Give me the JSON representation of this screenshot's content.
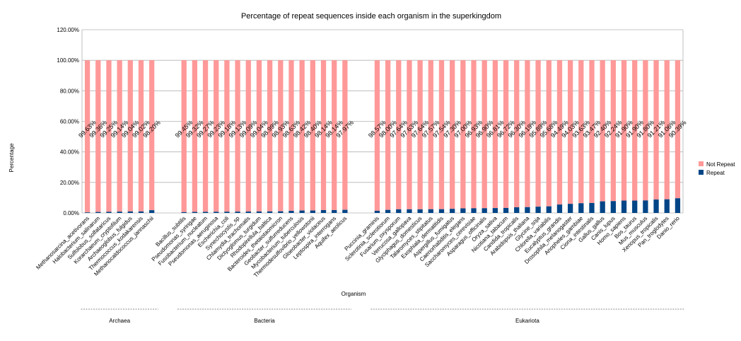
{
  "chart_data": {
    "type": "bar",
    "stacked": true,
    "title": "Percentage of repeat sequences inside each organism in the superkingdom",
    "xlabel": "Organism",
    "ylabel": "Percentage",
    "ylim": [
      0,
      1.2
    ],
    "yticks": [
      "0.00%",
      "20.00%",
      "40.00%",
      "60.00%",
      "80.00%",
      "100.00%",
      "120.00%"
    ],
    "grid": true,
    "legend_position": "right",
    "series": [
      {
        "name": "Not Repeat",
        "color": "#ff9999"
      },
      {
        "name": "Repeat",
        "color": "#004586"
      }
    ],
    "groups": [
      {
        "name": "Archaea",
        "items": [
          {
            "label": "Methanosarcina_acetivorans",
            "not_repeat_label": "99.63%",
            "repeat": 0.0037
          },
          {
            "label": "Halobacterium_salinarum",
            "not_repeat_label": "99.36%",
            "repeat": 0.0064
          },
          {
            "label": "Sulfolobus_solfataricus",
            "not_repeat_label": "99.25%",
            "repeat": 0.0075
          },
          {
            "label": "Korarchaeum_cryptofilum",
            "not_repeat_label": "99.14%",
            "repeat": 0.0086
          },
          {
            "label": "Archaeoglobus_fulgidus",
            "not_repeat_label": "99.04%",
            "repeat": 0.0096
          },
          {
            "label": "Thermococcus_kodakarensis",
            "not_repeat_label": "99.02%",
            "repeat": 0.0098
          },
          {
            "label": "Methanocaldococcus_jannaschii",
            "not_repeat_label": "98.20%",
            "repeat": 0.018
          }
        ]
      },
      {
        "name": "Bacteria",
        "items": [
          {
            "label": "Bacillus_subtilis",
            "not_repeat_label": "99.45%",
            "repeat": 0.0055
          },
          {
            "label": "Pseudomonas_syringae",
            "not_repeat_label": "99.32%",
            "repeat": 0.0068
          },
          {
            "label": "Fusobacterium_nucleatum",
            "not_repeat_label": "99.27%",
            "repeat": 0.0073
          },
          {
            "label": "Pseudomonas_aeruginosa",
            "not_repeat_label": "99.23%",
            "repeat": 0.0077
          },
          {
            "label": "Escherichia_coli",
            "not_repeat_label": "99.18%",
            "repeat": 0.0082
          },
          {
            "label": "Synechocystis_sp",
            "not_repeat_label": "99.13%",
            "repeat": 0.0087
          },
          {
            "label": "Chlamydia_trachomatis",
            "not_repeat_label": "99.09%",
            "repeat": 0.0091
          },
          {
            "label": "Dictyoglomus_turgidum",
            "not_repeat_label": "99.04%",
            "repeat": 0.0096
          },
          {
            "label": "Rhodopirellula_baltica",
            "not_repeat_label": "98.99%",
            "repeat": 0.0101
          },
          {
            "label": "Bacteroides_thetaiotaomicron",
            "not_repeat_label": "98.93%",
            "repeat": 0.0107
          },
          {
            "label": "Geobacter_sulfurreducens",
            "not_repeat_label": "98.63%",
            "repeat": 0.0137
          },
          {
            "label": "Mycobacterium_tuberculosis",
            "not_repeat_label": "98.42%",
            "repeat": 0.0158
          },
          {
            "label": "Thermodesulfovibrio_yellowstonii",
            "not_repeat_label": "98.40%",
            "repeat": 0.016
          },
          {
            "label": "Gloeobacter_violaceus",
            "not_repeat_label": "98.14%",
            "repeat": 0.0186
          },
          {
            "label": "Leptospira_interrogans",
            "not_repeat_label": "98.14%",
            "repeat": 0.0186
          },
          {
            "label": "Aquifex_aeolicus",
            "not_repeat_label": "97.97%",
            "repeat": 0.0203
          }
        ]
      },
      {
        "name": "Eukariota",
        "items": [
          {
            "label": "Puccinia_graminis",
            "not_repeat_label": "98.57%",
            "repeat": 0.0143
          },
          {
            "label": "Sclerotinia_sclerotiorum",
            "not_repeat_label": "98.00%",
            "repeat": 0.02
          },
          {
            "label": "Fusarium_oxysporum",
            "not_repeat_label": "97.64%",
            "repeat": 0.0236
          },
          {
            "label": "Verrucosa_gallopava",
            "not_repeat_label": "97.63%",
            "repeat": 0.0237
          },
          {
            "label": "Glyciphagus_domesticus",
            "not_repeat_label": "97.64%",
            "repeat": 0.0236
          },
          {
            "label": "Talaromyces_stipitatus",
            "not_repeat_label": "97.57%",
            "repeat": 0.0243
          },
          {
            "label": "Exophiala_dermatitidis",
            "not_repeat_label": "97.54%",
            "repeat": 0.0246
          },
          {
            "label": "Aspergillus_fumigatus",
            "not_repeat_label": "97.30%",
            "repeat": 0.027
          },
          {
            "label": "Caenorhabditis_elegans",
            "not_repeat_label": "97.00%",
            "repeat": 0.03
          },
          {
            "label": "Saccharomyces_cerevisiae",
            "not_repeat_label": "96.93%",
            "repeat": 0.0307
          },
          {
            "label": "Asparagus_officinalis",
            "not_repeat_label": "96.90%",
            "repeat": 0.031
          },
          {
            "label": "Oryza_sativa",
            "not_repeat_label": "96.81%",
            "repeat": 0.0319
          },
          {
            "label": "Nicotiana_tabacum",
            "not_repeat_label": "96.72%",
            "repeat": 0.0328
          },
          {
            "label": "Candida_tropicalis",
            "not_repeat_label": "96.30%",
            "repeat": 0.037
          },
          {
            "label": "Arabidopsis_thaliana",
            "not_repeat_label": "96.19%",
            "repeat": 0.0381
          },
          {
            "label": "Glycine_soja",
            "not_repeat_label": "95.89%",
            "repeat": 0.0411
          },
          {
            "label": "Chlorella_variabilis",
            "not_repeat_label": "95.68%",
            "repeat": 0.0432
          },
          {
            "label": "Eucalyptus_grandis",
            "not_repeat_label": "94.49%",
            "repeat": 0.0551
          },
          {
            "label": "Drosophila_melanogaster",
            "not_repeat_label": "94.03%",
            "repeat": 0.0597
          },
          {
            "label": "Anopheles_gambiae",
            "not_repeat_label": "93.63%",
            "repeat": 0.0637
          },
          {
            "label": "Ciona_intestinalis",
            "not_repeat_label": "93.47%",
            "repeat": 0.0653
          },
          {
            "label": "Gallus_gallus",
            "not_repeat_label": "92.40%",
            "repeat": 0.076
          },
          {
            "label": "Canis_lupus",
            "not_repeat_label": "92.24%",
            "repeat": 0.0776
          },
          {
            "label": "Homo_sapiens",
            "not_repeat_label": "91.90%",
            "repeat": 0.081
          },
          {
            "label": "Bos_taurus",
            "not_repeat_label": "91.90%",
            "repeat": 0.081
          },
          {
            "label": "Mus_musculus",
            "not_repeat_label": "91.80%",
            "repeat": 0.082
          },
          {
            "label": "Xenopus_tropicalis",
            "not_repeat_label": "91.21%",
            "repeat": 0.0879
          },
          {
            "label": "Pan_troglodytes",
            "not_repeat_label": "91.06%",
            "repeat": 0.0894
          },
          {
            "label": "Danio_rerio",
            "not_repeat_label": "90.39%",
            "repeat": 0.0961
          }
        ]
      }
    ]
  }
}
